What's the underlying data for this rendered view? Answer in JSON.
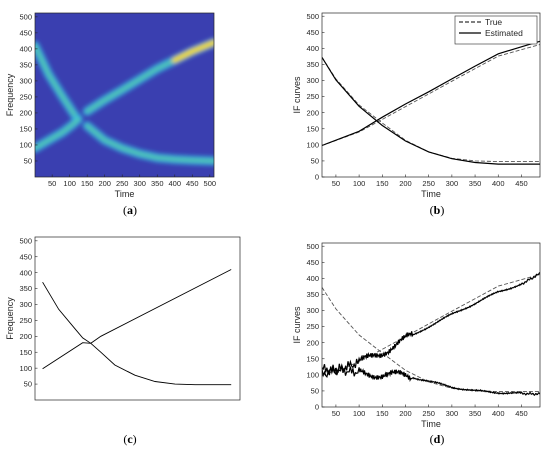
{
  "chart_data": [
    {
      "id": "a",
      "caption": "a",
      "type": "heatmap",
      "xlabel": "Time",
      "ylabel": "Frequency",
      "xlim": [
        1,
        512
      ],
      "ylim": [
        0,
        512
      ],
      "xticks": [
        50,
        100,
        150,
        200,
        250,
        300,
        350,
        400,
        450,
        500
      ],
      "yticks": [
        50,
        100,
        150,
        200,
        250,
        300,
        350,
        400,
        450,
        500
      ],
      "colors": {
        "background": "#3a3fb0",
        "ridge_low": "#33b7e6",
        "ridge_mid": "#5fd39a",
        "ridge_high": "#f2d82a"
      },
      "ridges": [
        {
          "name": "",
          "x": [
            1,
            40,
            80,
            110,
            120
          ],
          "y": [
            410,
            320,
            250,
            200,
            185
          ]
        },
        {
          "name": "",
          "x": [
            1,
            40,
            80,
            110,
            125
          ],
          "y": [
            90,
            115,
            140,
            165,
            180
          ]
        },
        {
          "name": "",
          "x": [
            150,
            200,
            250,
            300,
            350,
            400,
            450,
            512
          ],
          "y": [
            205,
            240,
            272,
            305,
            338,
            365,
            392,
            420
          ]
        },
        {
          "name": "",
          "x": [
            150,
            200,
            250,
            300,
            350,
            400,
            450,
            512
          ],
          "y": [
            160,
            115,
            90,
            72,
            60,
            55,
            52,
            50
          ]
        }
      ]
    },
    {
      "id": "b",
      "caption": "b",
      "type": "line",
      "xlabel": "Time",
      "ylabel": "IF curves",
      "xlim": [
        20,
        490
      ],
      "ylim": [
        0,
        510
      ],
      "xticks": [
        50,
        100,
        150,
        200,
        250,
        300,
        350,
        400,
        450
      ],
      "yticks": [
        0,
        50,
        100,
        150,
        200,
        250,
        300,
        350,
        400,
        450,
        500
      ],
      "legend": "top-right",
      "series": [
        {
          "name": "True",
          "style": "dashed",
          "x": [
            20,
            100,
            150,
            200,
            250,
            300,
            350,
            400,
            450,
            490
          ],
          "y": [
            98,
            140,
            179,
            219,
            258,
            298,
            337,
            376,
            396,
            412
          ]
        },
        {
          "name": "True",
          "style": "dashed",
          "x": [
            20,
            50,
            100,
            150,
            200,
            250,
            300,
            350,
            400,
            450,
            490
          ],
          "y": [
            372,
            305,
            224,
            168,
            114,
            78,
            58,
            50,
            48,
            48,
            48
          ]
        },
        {
          "name": "Estimated",
          "style": "solid",
          "x": [
            20,
            100,
            150,
            200,
            250,
            300,
            350,
            400,
            450,
            490
          ],
          "y": [
            98,
            142,
            186,
            227,
            265,
            305,
            345,
            383,
            405,
            422
          ]
        },
        {
          "name": "Estimated",
          "style": "solid",
          "x": [
            20,
            50,
            100,
            150,
            200,
            250,
            300,
            350,
            400,
            450,
            490
          ],
          "y": [
            372,
            302,
            220,
            160,
            112,
            78,
            57,
            45,
            40,
            40,
            40
          ]
        }
      ]
    },
    {
      "id": "c",
      "caption": "c",
      "type": "line",
      "xlabel": "",
      "ylabel": "Frequency",
      "xlim": [
        1,
        512
      ],
      "ylim": [
        0,
        512
      ],
      "xticks": [],
      "yticks": [
        50,
        100,
        150,
        200,
        250,
        300,
        350,
        400,
        450,
        500
      ],
      "series": [
        {
          "name": "",
          "style": "solid",
          "x": [
            20,
            120,
            140,
            165,
            490
          ],
          "y": [
            98,
            180,
            178,
            200,
            410
          ]
        },
        {
          "name": "",
          "style": "solid",
          "x": [
            20,
            60,
            100,
            120,
            140,
            165,
            200,
            250,
            300,
            350,
            400,
            490
          ],
          "y": [
            370,
            285,
            225,
            195,
            178,
            150,
            110,
            78,
            58,
            50,
            48,
            48
          ]
        }
      ]
    },
    {
      "id": "d",
      "caption": "d",
      "type": "line",
      "xlabel": "Time",
      "ylabel": "IF curves",
      "xlim": [
        20,
        490
      ],
      "ylim": [
        0,
        510
      ],
      "xticks": [
        50,
        100,
        150,
        200,
        250,
        300,
        350,
        400,
        450
      ],
      "yticks": [
        0,
        50,
        100,
        150,
        200,
        250,
        300,
        350,
        400,
        450,
        500
      ],
      "series": [
        {
          "name": "",
          "style": "dashed",
          "x": [
            20,
            100,
            200,
            300,
            400,
            490
          ],
          "y": [
            98,
            140,
            219,
            298,
            376,
            412
          ]
        },
        {
          "name": "",
          "style": "dashed",
          "x": [
            20,
            50,
            100,
            150,
            200,
            250,
            300,
            350,
            400,
            450,
            490
          ],
          "y": [
            372,
            305,
            224,
            168,
            114,
            78,
            58,
            50,
            48,
            48,
            48
          ]
        },
        {
          "name": "",
          "style": "solid",
          "x": [
            20,
            100,
            150,
            200,
            250,
            300,
            350,
            400,
            450,
            490
          ],
          "y": [
            100,
            138,
            170,
            210,
            250,
            288,
            322,
            358,
            382,
            415
          ]
        },
        {
          "name": "",
          "style": "solid",
          "x": [
            20,
            100,
            150,
            200,
            250,
            300,
            350,
            400,
            450,
            490
          ],
          "y": [
            118,
            108,
            100,
            98,
            80,
            62,
            50,
            45,
            42,
            40
          ]
        }
      ]
    }
  ]
}
